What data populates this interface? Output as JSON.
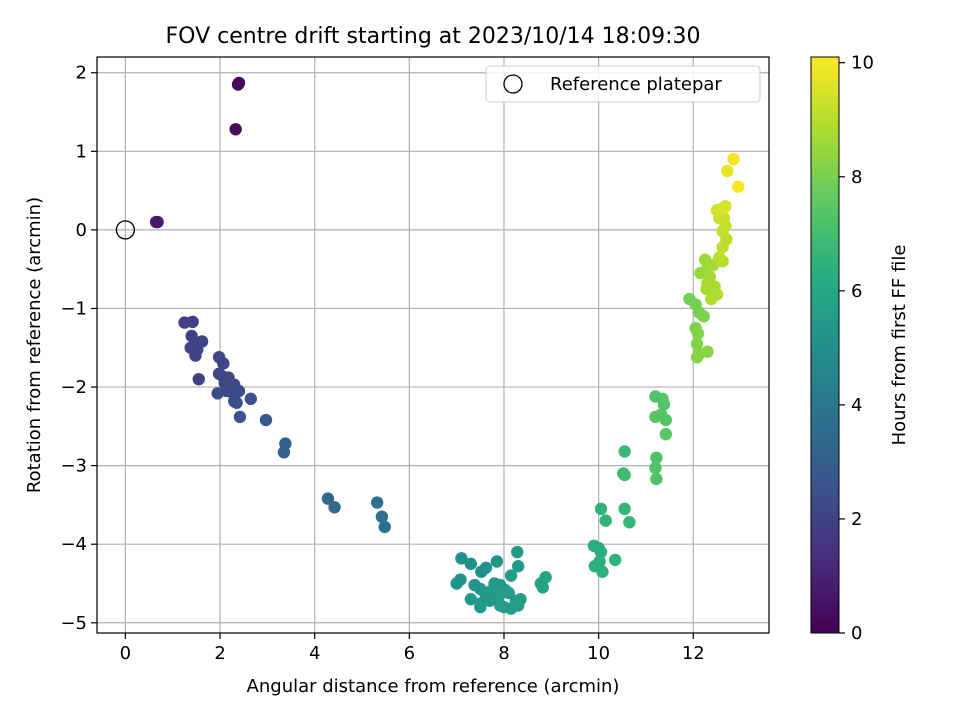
{
  "chart_data": {
    "type": "scatter",
    "title": "FOV centre drift starting at 2023/10/14 18:09:30",
    "xlabel": "Angular distance from reference (arcmin)",
    "ylabel": "Rotation from reference (arcmin)",
    "xlim": [
      -0.6,
      13.6
    ],
    "ylim": [
      -5.13,
      2.2
    ],
    "xticks": [
      "0",
      "2",
      "4",
      "6",
      "8",
      "10",
      "12"
    ],
    "yticks": [
      "−5",
      "−4",
      "−3",
      "−2",
      "−1",
      "0",
      "1",
      "2"
    ],
    "grid": true,
    "legend": {
      "placement": "top-right",
      "entries": [
        "Reference platepar"
      ]
    },
    "reference_point": {
      "x": 0,
      "y": 0
    },
    "colorbar": {
      "label": "Hours from first FF file",
      "range": [
        0,
        10.1
      ],
      "ticks": [
        "0",
        "2",
        "4",
        "6",
        "8",
        "10"
      ],
      "colormap": "viridis"
    },
    "points": [
      [
        2.38,
        1.85,
        0.2
      ],
      [
        2.4,
        1.87,
        0.2
      ],
      [
        2.33,
        1.28,
        0.3
      ],
      [
        0.65,
        0.1,
        0.7
      ],
      [
        0.68,
        0.1,
        0.75
      ],
      [
        1.25,
        -1.18,
        1.9
      ],
      [
        1.42,
        -1.17,
        1.95
      ],
      [
        1.4,
        -1.35,
        1.95
      ],
      [
        1.38,
        -1.5,
        2.0
      ],
      [
        1.45,
        -1.48,
        2.0
      ],
      [
        1.62,
        -1.42,
        2.0
      ],
      [
        1.52,
        -1.52,
        2.05
      ],
      [
        1.48,
        -1.6,
        2.05
      ],
      [
        1.55,
        -1.9,
        2.05
      ],
      [
        1.98,
        -1.62,
        2.1
      ],
      [
        2.07,
        -1.7,
        2.1
      ],
      [
        1.98,
        -1.83,
        2.1
      ],
      [
        2.07,
        -1.87,
        2.15
      ],
      [
        2.18,
        -1.88,
        2.15
      ],
      [
        2.1,
        -1.95,
        2.2
      ],
      [
        2.22,
        -2.0,
        2.2
      ],
      [
        2.3,
        -1.97,
        2.25
      ],
      [
        2.14,
        -2.05,
        2.25
      ],
      [
        1.95,
        -2.08,
        2.25
      ],
      [
        2.3,
        -2.1,
        2.3
      ],
      [
        2.35,
        -2.2,
        2.35
      ],
      [
        2.3,
        -2.18,
        2.4
      ],
      [
        2.4,
        -2.05,
        2.4
      ],
      [
        2.65,
        -2.15,
        2.5
      ],
      [
        2.42,
        -2.38,
        2.6
      ],
      [
        2.97,
        -2.42,
        2.8
      ],
      [
        3.38,
        -2.72,
        3.0
      ],
      [
        3.35,
        -2.83,
        3.05
      ],
      [
        4.28,
        -3.42,
        3.4
      ],
      [
        4.42,
        -3.53,
        3.45
      ],
      [
        5.32,
        -3.47,
        3.7
      ],
      [
        5.42,
        -3.65,
        3.75
      ],
      [
        5.48,
        -3.78,
        3.8
      ],
      [
        7.1,
        -4.18,
        5.0
      ],
      [
        7.3,
        -4.25,
        5.05
      ],
      [
        7.52,
        -4.35,
        5.1
      ],
      [
        7.62,
        -4.3,
        5.15
      ],
      [
        7.85,
        -4.22,
        5.2
      ],
      [
        7.08,
        -4.45,
        5.1
      ],
      [
        7.0,
        -4.5,
        5.15
      ],
      [
        7.38,
        -4.52,
        5.2
      ],
      [
        7.5,
        -4.57,
        5.25
      ],
      [
        7.6,
        -4.62,
        5.3
      ],
      [
        7.8,
        -4.5,
        5.35
      ],
      [
        7.92,
        -4.52,
        5.4
      ],
      [
        8.02,
        -4.58,
        5.4
      ],
      [
        8.28,
        -4.1,
        5.45
      ],
      [
        8.3,
        -4.28,
        5.5
      ],
      [
        8.15,
        -4.4,
        5.55
      ],
      [
        7.3,
        -4.7,
        5.3
      ],
      [
        7.52,
        -4.75,
        5.35
      ],
      [
        7.5,
        -4.8,
        5.4
      ],
      [
        7.7,
        -4.72,
        5.45
      ],
      [
        7.92,
        -4.78,
        5.5
      ],
      [
        8.0,
        -4.8,
        5.55
      ],
      [
        8.15,
        -4.82,
        5.6
      ],
      [
        8.25,
        -4.72,
        5.65
      ],
      [
        8.3,
        -4.78,
        5.7
      ],
      [
        7.9,
        -4.65,
        5.6
      ],
      [
        7.72,
        -4.6,
        5.5
      ],
      [
        8.1,
        -4.62,
        5.55
      ],
      [
        8.35,
        -4.7,
        5.6
      ],
      [
        8.78,
        -4.5,
        5.8
      ],
      [
        8.82,
        -4.55,
        5.85
      ],
      [
        8.88,
        -4.42,
        5.9
      ],
      [
        9.9,
        -4.02,
        6.3
      ],
      [
        10.0,
        -4.05,
        6.3
      ],
      [
        10.05,
        -4.1,
        6.35
      ],
      [
        10.02,
        -4.22,
        6.4
      ],
      [
        9.92,
        -4.28,
        6.4
      ],
      [
        10.08,
        -4.35,
        6.45
      ],
      [
        10.35,
        -4.2,
        6.5
      ],
      [
        10.05,
        -3.55,
        6.5
      ],
      [
        10.15,
        -3.7,
        6.55
      ],
      [
        10.55,
        -3.55,
        6.65
      ],
      [
        10.65,
        -3.72,
        6.7
      ],
      [
        10.55,
        -2.82,
        6.8
      ],
      [
        10.55,
        -3.12,
        6.85
      ],
      [
        10.52,
        -3.1,
        6.85
      ],
      [
        11.2,
        -2.12,
        7.3
      ],
      [
        11.35,
        -2.15,
        7.3
      ],
      [
        11.38,
        -2.22,
        7.35
      ],
      [
        11.2,
        -2.38,
        7.35
      ],
      [
        11.32,
        -2.35,
        7.4
      ],
      [
        11.42,
        -2.42,
        7.4
      ],
      [
        11.42,
        -2.6,
        7.45
      ],
      [
        11.22,
        -2.9,
        7.2
      ],
      [
        11.2,
        -3.03,
        7.25
      ],
      [
        11.22,
        -3.17,
        7.3
      ],
      [
        11.92,
        -0.88,
        7.9
      ],
      [
        12.05,
        -0.95,
        7.95
      ],
      [
        12.12,
        -1.05,
        8.0
      ],
      [
        12.22,
        -1.1,
        8.05
      ],
      [
        12.05,
        -1.25,
        8.1
      ],
      [
        12.1,
        -1.32,
        8.15
      ],
      [
        12.08,
        -1.45,
        8.15
      ],
      [
        12.12,
        -1.58,
        8.2
      ],
      [
        12.08,
        -1.62,
        8.25
      ],
      [
        12.3,
        -1.55,
        8.3
      ],
      [
        12.15,
        -0.55,
        8.5
      ],
      [
        12.3,
        -0.48,
        8.6
      ],
      [
        12.25,
        -0.38,
        8.6
      ],
      [
        12.42,
        -0.45,
        8.7
      ],
      [
        12.35,
        -0.6,
        8.7
      ],
      [
        12.3,
        -0.68,
        8.75
      ],
      [
        12.45,
        -0.72,
        8.8
      ],
      [
        12.28,
        -0.75,
        8.8
      ],
      [
        12.5,
        -0.82,
        8.85
      ],
      [
        12.38,
        -0.88,
        8.85
      ],
      [
        12.62,
        -0.4,
        9.0
      ],
      [
        12.55,
        -0.35,
        9.05
      ],
      [
        12.62,
        -0.22,
        9.1
      ],
      [
        12.7,
        -0.12,
        9.1
      ],
      [
        12.62,
        -0.02,
        9.2
      ],
      [
        12.68,
        0.05,
        9.25
      ],
      [
        12.55,
        0.15,
        9.3
      ],
      [
        12.65,
        0.15,
        9.3
      ],
      [
        12.5,
        0.25,
        9.4
      ],
      [
        12.62,
        0.27,
        9.45
      ],
      [
        12.68,
        0.3,
        9.5
      ],
      [
        12.72,
        0.75,
        9.8
      ],
      [
        12.85,
        0.9,
        9.95
      ],
      [
        12.95,
        0.55,
        10.0
      ]
    ]
  }
}
